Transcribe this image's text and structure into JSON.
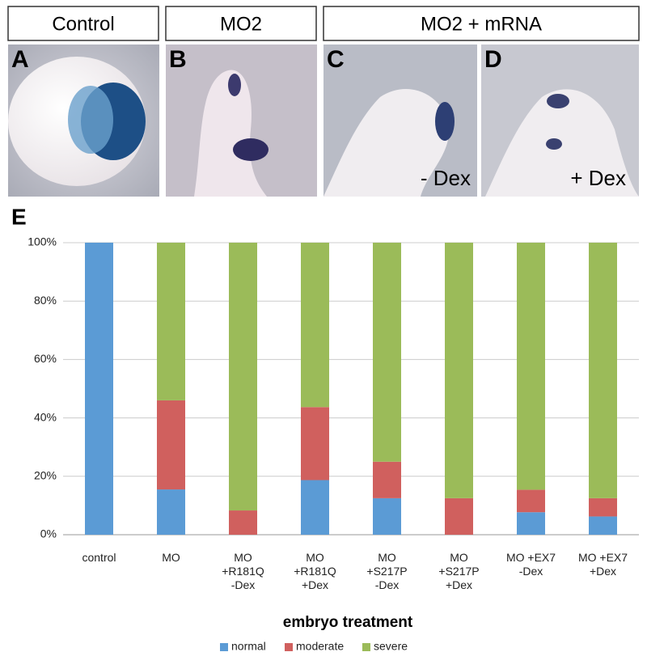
{
  "panels": {
    "headers": [
      "Control",
      "MO2",
      "MO2 + mRNA"
    ],
    "images": [
      {
        "letter": "A"
      },
      {
        "letter": "B"
      },
      {
        "letter": "C",
        "label": "- Dex"
      },
      {
        "letter": "D",
        "label": "+ Dex"
      }
    ]
  },
  "chart_data": {
    "type": "bar",
    "stacked": true,
    "panel_label": "E",
    "xlabel": "embryo treatment",
    "categories": [
      "control",
      "MO",
      "MO\n+R181Q\n-Dex",
      "MO\n+R181Q\n+Dex",
      "MO\n+S217P\n-Dex",
      "MO\n+S217P\n+Dex",
      "MO +EX7\n-Dex",
      "MO +EX7\n+Dex"
    ],
    "series": [
      {
        "name": "normal",
        "color": "#5b9bd5",
        "values": [
          100,
          15.5,
          0,
          18.7,
          12.5,
          0,
          7.7,
          6.25
        ]
      },
      {
        "name": "moderate",
        "color": "#d0605e",
        "values": [
          0,
          30.5,
          8.3,
          25,
          12.5,
          12.5,
          7.7,
          6.25
        ]
      },
      {
        "name": "severe",
        "color": "#9bbb59",
        "values": [
          0,
          54,
          91.7,
          56.3,
          75,
          87.5,
          84.6,
          87.5
        ]
      }
    ],
    "ylim": [
      0,
      100
    ],
    "yticks": [
      {
        "value": 0,
        "label": "0%"
      },
      {
        "value": 20,
        "label": "20%"
      },
      {
        "value": 40,
        "label": "40%"
      },
      {
        "value": 60,
        "label": "60%"
      },
      {
        "value": 80,
        "label": "80%"
      },
      {
        "value": 100,
        "label": "100%"
      }
    ],
    "grid": true,
    "legend": "bottom"
  }
}
